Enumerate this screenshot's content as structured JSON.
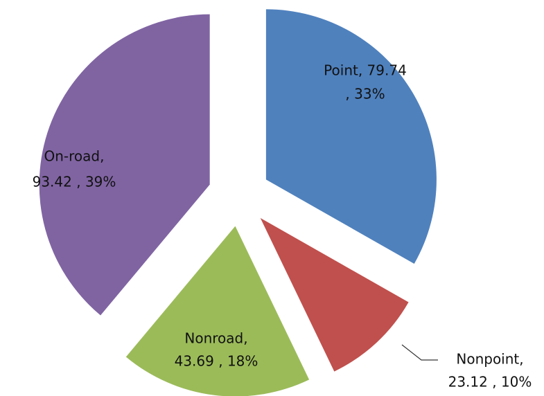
{
  "chart_data": {
    "type": "pie",
    "values": [
      79.74,
      23.12,
      43.69,
      93.42
    ],
    "value_labels": [
      [
        "Point,  79.74",
        ", 33%"
      ],
      [
        "Nonpoint,",
        "23.12 , 10%"
      ],
      [
        "Nonroad,",
        "43.69 , 18%"
      ],
      [
        "On-road,",
        "93.42 , 39%"
      ]
    ],
    "colors": [
      "#4f81bd",
      "#c0504d",
      "#9bbb59",
      "#8064a2"
    ]
  }
}
